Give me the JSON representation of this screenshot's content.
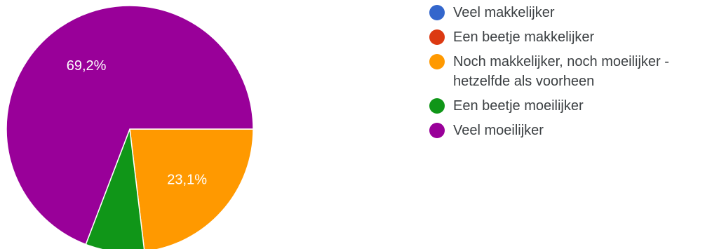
{
  "chart_data": {
    "type": "pie",
    "title": "",
    "categories": [
      "Veel makkelijker",
      "Een beetje makkelijker",
      "Noch makkelijker, noch moeilijker - hetzelfde als voorheen",
      "Een beetje moeilijker",
      "Veel moeilijker"
    ],
    "values": [
      0,
      0,
      23.1,
      7.7,
      69.2
    ],
    "colors": [
      "#3366cc",
      "#dc3912",
      "#ff9900",
      "#109618",
      "#990099"
    ],
    "labels": [
      "",
      "",
      "23,1%",
      "",
      "69,2%"
    ],
    "legend_position": "right"
  }
}
